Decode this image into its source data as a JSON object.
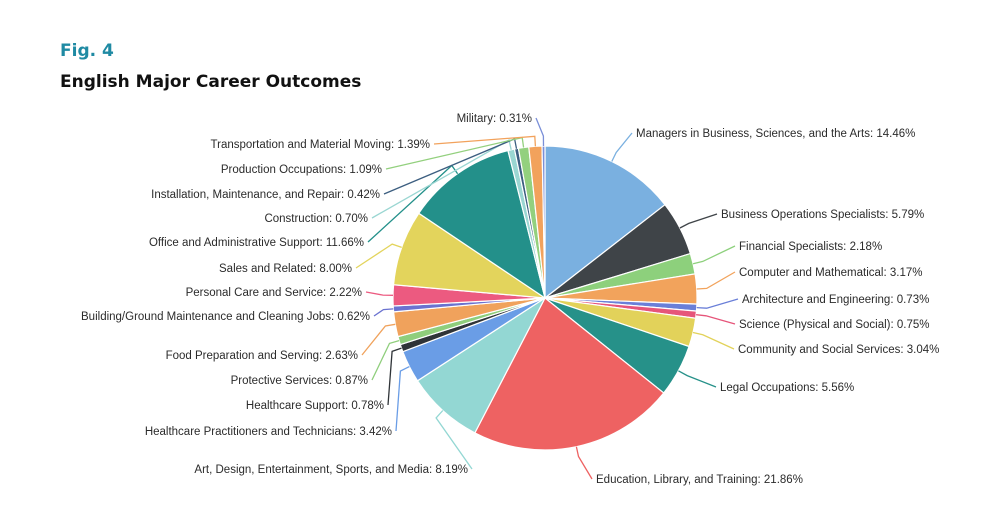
{
  "figure": {
    "label": "Fig. 4"
  },
  "chart_data": {
    "type": "pie",
    "title": "English Major Career Outcomes",
    "slices": [
      {
        "label": "Managers in Business, Sciences, and the Arts",
        "display_value": "14.46%",
        "value": 14.46,
        "color": "#7ab0e0"
      },
      {
        "label": "Business Operations Specialists",
        "display_value": "5.79%",
        "value": 5.79,
        "color": "#3f4448"
      },
      {
        "label": "Financial Specialists",
        "display_value": "2.18%",
        "value": 2.18,
        "color": "#8dd07c"
      },
      {
        "label": "Computer and Mathematical",
        "display_value": "3.17%",
        "value": 3.17,
        "color": "#f2a35c"
      },
      {
        "label": "Architecture and Engineering",
        "display_value": "0.73%",
        "value": 0.73,
        "color": "#6a7fd8"
      },
      {
        "label": "Science (Physical and Social)",
        "display_value": "0.75%",
        "value": 0.75,
        "color": "#e6557a"
      },
      {
        "label": "Community and Social Services",
        "display_value": "3.04%",
        "value": 3.04,
        "color": "#e2d25a"
      },
      {
        "label": "Legal Occupations",
        "display_value": "5.56%",
        "value": 5.56,
        "color": "#269189"
      },
      {
        "label": "Education, Library, and Training",
        "display_value": "21.86%",
        "value": 21.86,
        "color": "#ee6262"
      },
      {
        "label": "Art, Design, Entertainment, Sports, and Media",
        "display_value": "8.19%",
        "value": 8.19,
        "color": "#93d7d3"
      },
      {
        "label": "Healthcare Practitioners and Technicians",
        "display_value": "3.42%",
        "value": 3.42,
        "color": "#6a9de6"
      },
      {
        "label": "Healthcare Support",
        "display_value": "0.78%",
        "value": 0.78,
        "color": "#2f3438"
      },
      {
        "label": "Protective Services",
        "display_value": "0.87%",
        "value": 0.87,
        "color": "#8fce7c"
      },
      {
        "label": "Food Preparation and Serving",
        "display_value": "2.63%",
        "value": 2.63,
        "color": "#f0a25c"
      },
      {
        "label": "Building/Ground Maintenance and Cleaning Jobs",
        "display_value": "0.62%",
        "value": 0.62,
        "color": "#6a72d0"
      },
      {
        "label": "Personal Care and Service",
        "display_value": "2.22%",
        "value": 2.22,
        "color": "#ec5a80"
      },
      {
        "label": "Sales and Related",
        "display_value": "8.00%",
        "value": 8.0,
        "color": "#e3d45c"
      },
      {
        "label": "Office and Administrative Support",
        "display_value": "11.66%",
        "value": 11.66,
        "color": "#23908a"
      },
      {
        "label": "Construction",
        "display_value": "0.70%",
        "value": 0.7,
        "color": "#9ad6d2"
      },
      {
        "label": "Installation, Maintenance, and Repair",
        "display_value": "0.42%",
        "value": 0.42,
        "color": "#3c5e80"
      },
      {
        "label": "Production Occupations",
        "display_value": "1.09%",
        "value": 1.09,
        "color": "#93d07e"
      },
      {
        "label": "Transportation and Material Moving",
        "display_value": "1.39%",
        "value": 1.39,
        "color": "#f2a25c"
      },
      {
        "label": "Military",
        "display_value": "0.31%",
        "value": 0.31,
        "color": "#7a8fd8"
      }
    ]
  }
}
